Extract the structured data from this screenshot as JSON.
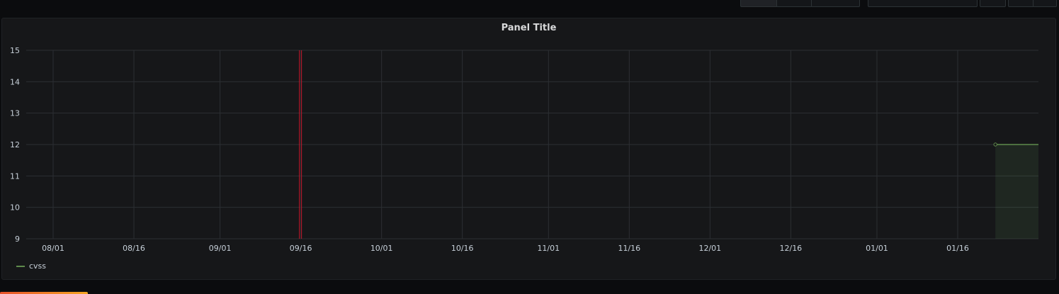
{
  "panel": {
    "title": "Panel Title"
  },
  "colors": {
    "series": "#73bf69",
    "series_dim": "#5f8b4c",
    "annotation": "#c4162a",
    "grid": "#2c2f33",
    "text": "#c7d0d9",
    "background": "#161719"
  },
  "chart_data": {
    "type": "line",
    "title": "Panel Title",
    "xlabel": "",
    "ylabel": "",
    "x_ticks": [
      "08/01",
      "08/16",
      "09/01",
      "09/16",
      "10/01",
      "10/16",
      "11/01",
      "11/16",
      "12/01",
      "12/16",
      "01/01",
      "01/16"
    ],
    "y_ticks": [
      9,
      10,
      11,
      12,
      13,
      14,
      15
    ],
    "ylim": [
      9,
      15
    ],
    "xlim": [
      "2019-07-27",
      "2020-01-31"
    ],
    "grid": true,
    "legend_position": "bottom-left",
    "series": [
      {
        "name": "cvss",
        "x": [
          "2020-01-23",
          "2020-01-31"
        ],
        "values": [
          12,
          12
        ],
        "fill": true
      }
    ],
    "annotations": [
      {
        "type": "vertical-line",
        "x": "2019-09-16",
        "color": "#c4162a"
      }
    ]
  }
}
